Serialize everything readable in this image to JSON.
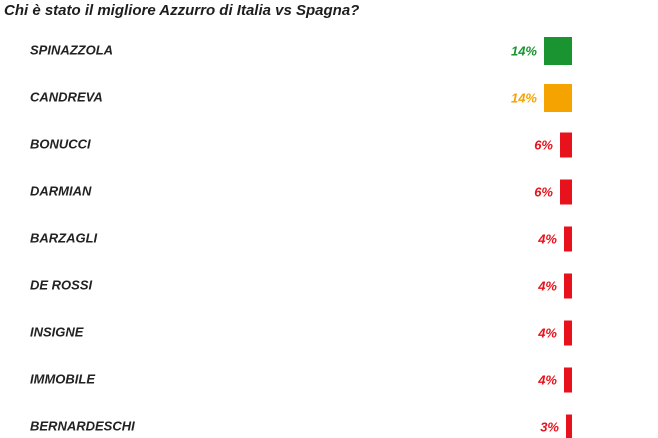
{
  "chart_data": {
    "type": "bar",
    "orientation": "horizontal",
    "title": "Chi è stato il migliore Azzurro di Italia vs Spagna?",
    "categories": [
      "SPINAZZOLA",
      "CANDREVA",
      "BONUCCI",
      "DARMIAN",
      "BARZAGLI",
      "DE ROSSI",
      "INSIGNE",
      "IMMOBILE",
      "BERNARDESCHI"
    ],
    "values": [
      14,
      14,
      6,
      6,
      4,
      4,
      4,
      4,
      3
    ],
    "value_labels": [
      "14%",
      "14%",
      "6%",
      "6%",
      "4%",
      "4%",
      "4%",
      "4%",
      "3%"
    ],
    "colors": [
      "#1a9431",
      "#f5a300",
      "#e8121c",
      "#e8121c",
      "#e8121c",
      "#e8121c",
      "#e8121c",
      "#e8121c",
      "#e8121c"
    ]
  }
}
